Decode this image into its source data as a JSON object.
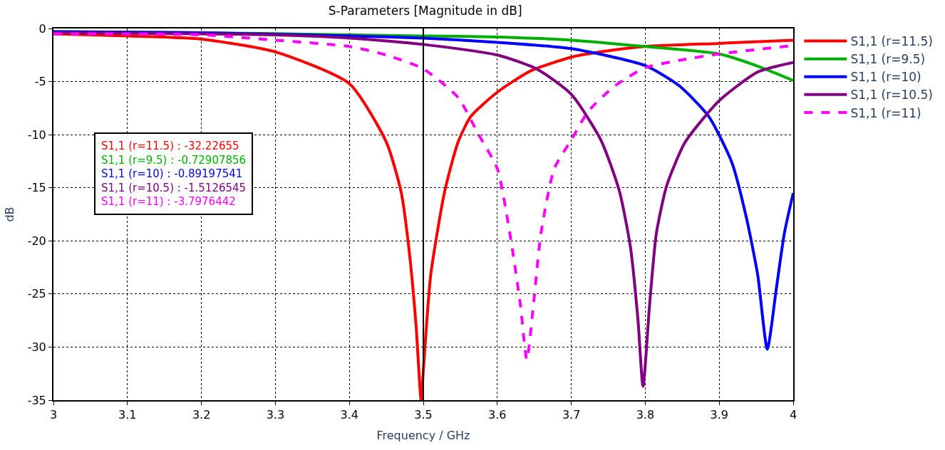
{
  "chart_data": {
    "type": "line",
    "title": "S-Parameters [Magnitude in dB]",
    "xlabel": "Frequency / GHz",
    "ylabel": "dB",
    "xlim": [
      3,
      4
    ],
    "ylim": [
      -35,
      0
    ],
    "xticks": [
      3,
      3.1,
      3.2,
      3.3,
      3.4,
      3.5,
      3.6,
      3.7,
      3.8,
      3.9,
      4
    ],
    "yticks": [
      0,
      -5,
      -10,
      -15,
      -20,
      -25,
      -30,
      -35
    ],
    "grid": true,
    "legend": "right",
    "marker": "none",
    "ref_lines": [
      {
        "axis": "x",
        "value": 3.5,
        "color": "#000000"
      }
    ],
    "annotations": [
      "S1,1 (r=11.5) : -32.22655",
      "S1,1 (r=9.5) : -0.72907856",
      "S1,1 (r=10) : -0.89197541",
      "S1,1 (r=10.5) : -1.5126545",
      "S1,1 (r=11) : -3.7976442"
    ],
    "series": [
      {
        "name": "S1,1 (r=11.5)",
        "color": "#ff0000",
        "line_style": "solid",
        "x": [
          3.0,
          3.1,
          3.2,
          3.3,
          3.4,
          3.45,
          3.47,
          3.48,
          3.49,
          3.497,
          3.5,
          3.51,
          3.529,
          3.547,
          3.564,
          3.6,
          3.645,
          3.7,
          3.74,
          3.8,
          3.9,
          4.0
        ],
        "values": [
          -0.5,
          -0.7,
          -1.0,
          -2.2,
          -5.2,
          -10.7,
          -15.4,
          -20.4,
          -27.8,
          -35,
          -32.2,
          -23.2,
          -15.3,
          -10.7,
          -8.3,
          -6.0,
          -4.0,
          -2.7,
          -2.2,
          -1.7,
          -1.4,
          -1.1
        ]
      },
      {
        "name": "S1,1 (r=9.5)",
        "color": "#00b000",
        "line_style": "solid",
        "x": [
          3.0,
          3.2,
          3.4,
          3.5,
          3.6,
          3.7,
          3.8,
          3.9,
          3.95,
          4.0
        ],
        "values": [
          -0.3,
          -0.4,
          -0.6,
          -0.7,
          -0.8,
          -1.1,
          -1.7,
          -2.4,
          -3.5,
          -4.9
        ]
      },
      {
        "name": "S1,1 (r=10)",
        "color": "#0000ff",
        "line_style": "solid",
        "x": [
          3.0,
          3.2,
          3.4,
          3.5,
          3.6,
          3.7,
          3.8,
          3.846,
          3.886,
          3.917,
          3.937,
          3.952,
          3.965,
          3.977,
          3.988,
          4.0
        ],
        "values": [
          -0.3,
          -0.4,
          -0.7,
          -0.9,
          -1.3,
          -1.9,
          -3.5,
          -5.4,
          -8.3,
          -12.6,
          -17.9,
          -23.2,
          -30.2,
          -24.6,
          -19.3,
          -15.5
        ]
      },
      {
        "name": "S1,1 (r=10.5)",
        "color": "#800080",
        "line_style": "solid",
        "x": [
          3.0,
          3.2,
          3.3,
          3.4,
          3.5,
          3.6,
          3.653,
          3.7,
          3.74,
          3.765,
          3.78,
          3.79,
          3.797,
          3.806,
          3.815,
          3.829,
          3.854,
          3.9,
          3.952,
          4.0
        ],
        "values": [
          -0.4,
          -0.5,
          -0.6,
          -0.9,
          -1.5,
          -2.5,
          -3.8,
          -6.2,
          -10.5,
          -15.3,
          -20.6,
          -27.3,
          -33.7,
          -25.9,
          -19.3,
          -14.8,
          -10.7,
          -6.8,
          -4.1,
          -3.2
        ]
      },
      {
        "name": "S1,1 (r=11)",
        "color": "#ff00ff",
        "line_style": "dashed",
        "x": [
          3.0,
          3.2,
          3.3,
          3.4,
          3.45,
          3.5,
          3.547,
          3.574,
          3.6,
          3.617,
          3.631,
          3.64,
          3.649,
          3.659,
          3.677,
          3.7,
          3.723,
          3.759,
          3.8,
          3.846,
          3.9,
          4.0
        ],
        "values": [
          -0.5,
          -0.6,
          -1.1,
          -1.7,
          -2.5,
          -3.8,
          -6.5,
          -9.9,
          -13.2,
          -19.3,
          -25.9,
          -31.2,
          -25.9,
          -19.3,
          -13.2,
          -10.5,
          -7.8,
          -5.4,
          -3.7,
          -3.0,
          -2.4,
          -1.6
        ]
      }
    ]
  }
}
